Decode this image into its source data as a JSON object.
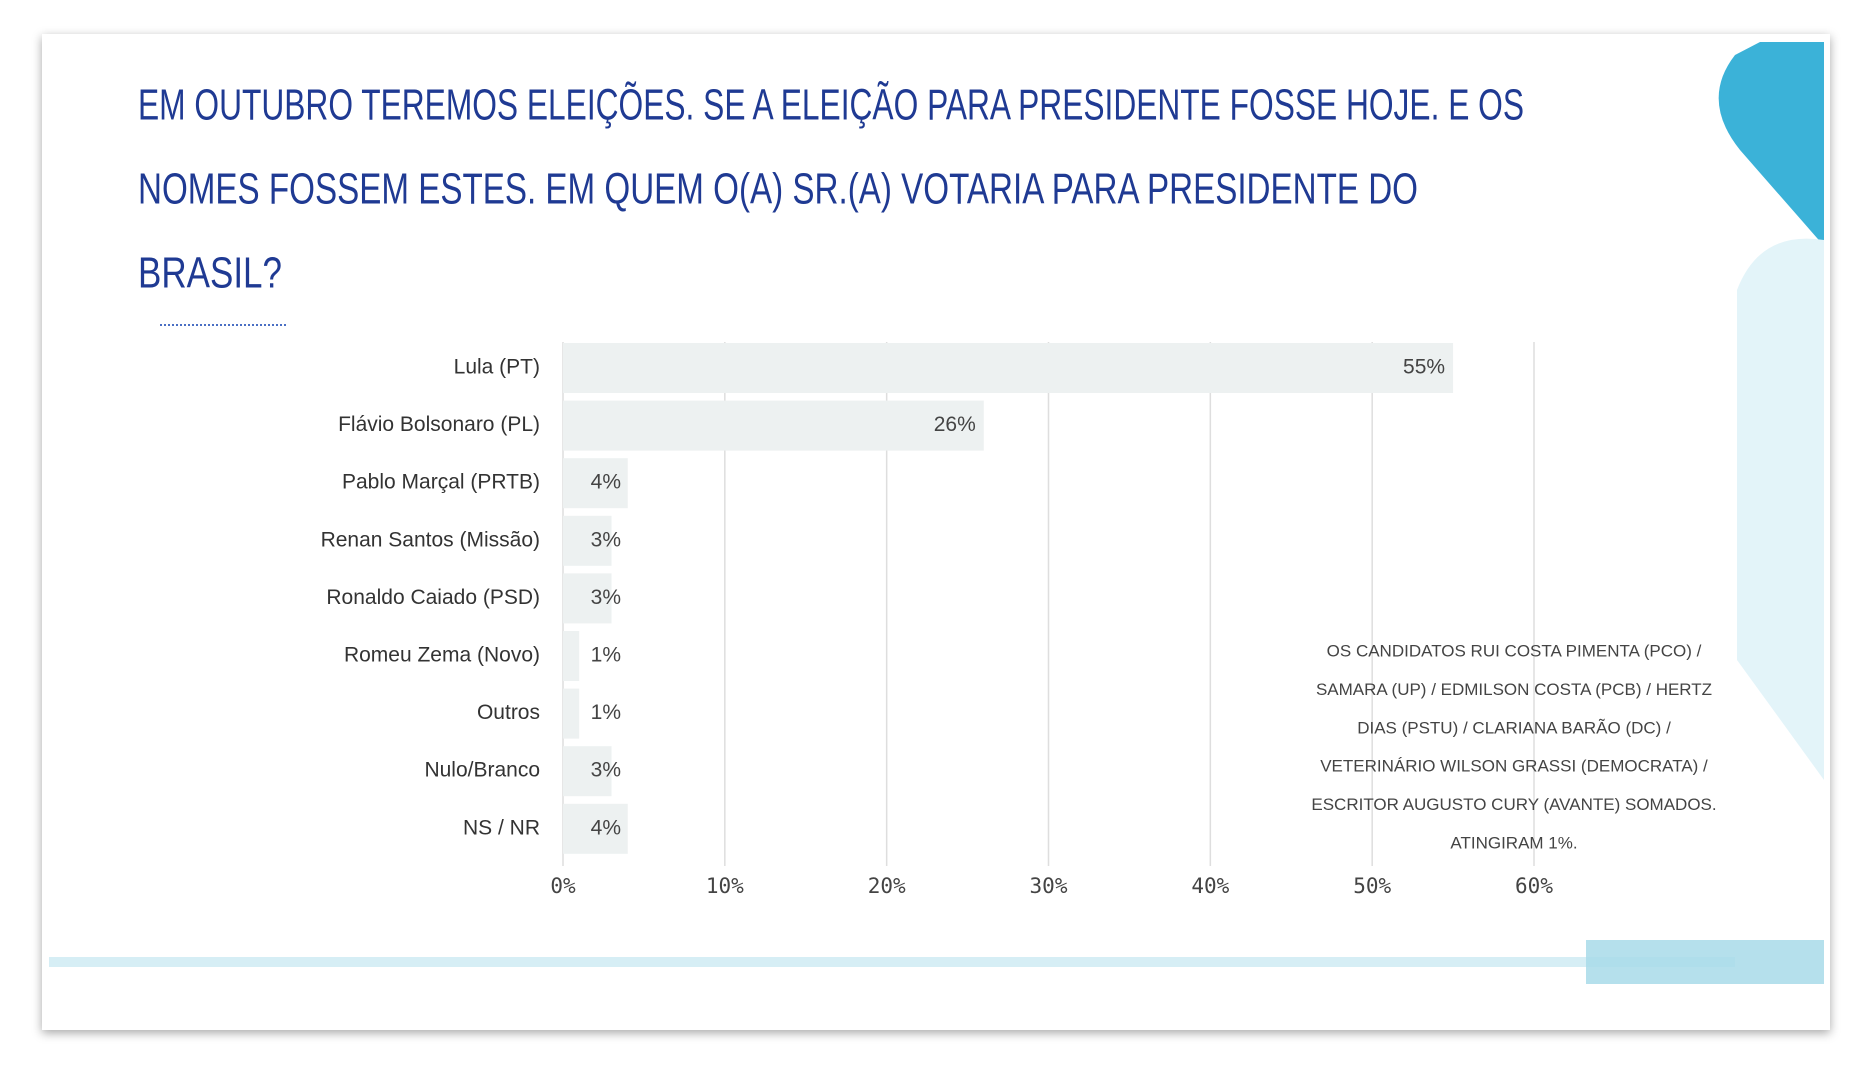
{
  "header": {
    "title_lines": [
      "EM OUTUBRO TEREMOS ELEIÇÕES. SE A ELEIÇÃO PARA PRESIDENTE FOSSE HOJE. E OS",
      "NOMES FOSSEM ESTES. EM QUEM O(A) SR.(A) VOTARIA PARA PRESIDENTE DO",
      "BRASIL?"
    ]
  },
  "chart_data": {
    "type": "hbar",
    "categories": [
      "Lula (PT)",
      "Flávio Bolsonaro (PL)",
      "Pablo Marçal (PRTB)",
      "Renan Santos (Missão)",
      "Ronaldo Caiado (PSD)",
      "Romeu Zema (Novo)",
      "Outros",
      "Nulo/Branco",
      "NS / NR"
    ],
    "values": [
      55,
      26,
      4,
      3,
      3,
      1,
      1,
      3,
      4
    ],
    "value_labels": [
      "55%",
      "26%",
      "4%",
      "3%",
      "3%",
      "1%",
      "1%",
      "3%",
      "4%"
    ],
    "color": "#edf1f1",
    "xlim": [
      0,
      60
    ],
    "xticks": [
      {
        "value": 0,
        "label": "0%"
      },
      {
        "value": 10,
        "label": "10%"
      },
      {
        "value": 20,
        "label": "20%"
      },
      {
        "value": 30,
        "label": "30%"
      },
      {
        "value": 40,
        "label": "40%"
      },
      {
        "value": 50,
        "label": "50%"
      },
      {
        "value": 60,
        "label": "60%"
      }
    ],
    "grid": true
  },
  "note": {
    "lines": [
      "OS CANDIDATOS  RUI COSTA PIMENTA (PCO) /",
      "SAMARA  (UP) / EDMILSON COSTA (PCB) / HERTZ",
      "DIAS (PSTU)  / CLARIANA BARÃO (DC) /",
      "VETERINÁRIO WILSON GRASSI (DEMOCRATA) /",
      "ESCRITOR AUGUSTO CURY (AVANTE) SOMADOS.",
      "ATINGIRAM 1%."
    ]
  }
}
